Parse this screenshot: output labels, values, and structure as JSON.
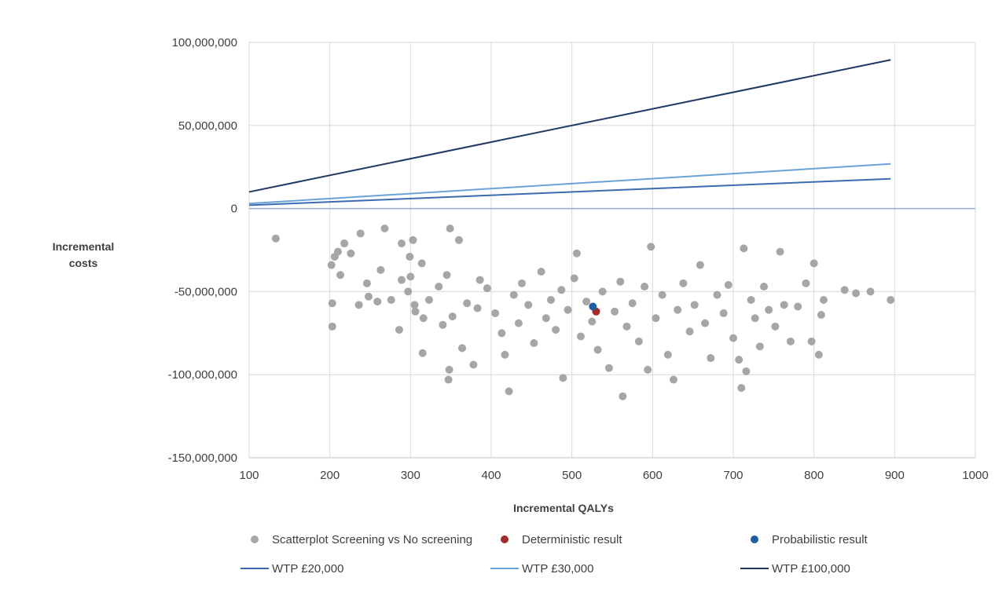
{
  "chart_data": {
    "type": "scatter",
    "title": "",
    "xlabel": "Incremental QALYs",
    "ylabel": [
      "Incremental",
      "costs"
    ],
    "xlim": [
      100,
      1000
    ],
    "ylim": [
      -150000000,
      100000000
    ],
    "x_ticks": [
      100,
      200,
      300,
      400,
      500,
      600,
      700,
      800,
      900,
      1000
    ],
    "y_ticks": [
      100000000,
      50000000,
      0,
      -50000000,
      -100000000,
      -150000000
    ],
    "x_tick_labels": [
      "100",
      "200",
      "300",
      "400",
      "500",
      "600",
      "700",
      "800",
      "900",
      "1000"
    ],
    "y_tick_labels": [
      "100,000,000",
      "50,000,000",
      "0",
      "-50,000,000",
      "-100,000,000",
      "-150,000,000"
    ],
    "grid": true,
    "legend_position": "bottom",
    "scatter": {
      "name": "Scatterplot Screening vs No screening",
      "color": "#a6a6a6",
      "points": [
        [
          133,
          -18000000
        ],
        [
          202,
          -34000000
        ],
        [
          203,
          -57000000
        ],
        [
          203,
          -71000000
        ],
        [
          206,
          -29000000
        ],
        [
          210,
          -26000000
        ],
        [
          213,
          -40000000
        ],
        [
          218,
          -21000000
        ],
        [
          226,
          -27000000
        ],
        [
          236,
          -58000000
        ],
        [
          238,
          -15000000
        ],
        [
          246,
          -45000000
        ],
        [
          248,
          -53000000
        ],
        [
          259,
          -56000000
        ],
        [
          263,
          -37000000
        ],
        [
          268,
          -12000000
        ],
        [
          276,
          -55000000
        ],
        [
          286,
          -73000000
        ],
        [
          289,
          -43000000
        ],
        [
          289,
          -21000000
        ],
        [
          297,
          -50000000
        ],
        [
          299,
          -29000000
        ],
        [
          300,
          -41000000
        ],
        [
          303,
          -19000000
        ],
        [
          305,
          -58000000
        ],
        [
          306,
          -62000000
        ],
        [
          314,
          -33000000
        ],
        [
          315,
          -87000000
        ],
        [
          316,
          -66000000
        ],
        [
          323,
          -55000000
        ],
        [
          335,
          -47000000
        ],
        [
          340,
          -70000000
        ],
        [
          345,
          -40000000
        ],
        [
          347,
          -103000000
        ],
        [
          348,
          -97000000
        ],
        [
          349,
          -12000000
        ],
        [
          352,
          -65000000
        ],
        [
          360,
          -19000000
        ],
        [
          364,
          -84000000
        ],
        [
          370,
          -57000000
        ],
        [
          378,
          -94000000
        ],
        [
          383,
          -60000000
        ],
        [
          386,
          -43000000
        ],
        [
          395,
          -48000000
        ],
        [
          405,
          -63000000
        ],
        [
          413,
          -75000000
        ],
        [
          417,
          -88000000
        ],
        [
          422,
          -110000000
        ],
        [
          428,
          -52000000
        ],
        [
          434,
          -69000000
        ],
        [
          438,
          -45000000
        ],
        [
          446,
          -58000000
        ],
        [
          453,
          -81000000
        ],
        [
          462,
          -38000000
        ],
        [
          468,
          -66000000
        ],
        [
          474,
          -55000000
        ],
        [
          480,
          -73000000
        ],
        [
          487,
          -49000000
        ],
        [
          489,
          -102000000
        ],
        [
          495,
          -61000000
        ],
        [
          503,
          -42000000
        ],
        [
          506,
          -27000000
        ],
        [
          511,
          -77000000
        ],
        [
          518,
          -56000000
        ],
        [
          525,
          -68000000
        ],
        [
          532,
          -85000000
        ],
        [
          538,
          -50000000
        ],
        [
          546,
          -96000000
        ],
        [
          553,
          -62000000
        ],
        [
          560,
          -44000000
        ],
        [
          563,
          -113000000
        ],
        [
          568,
          -71000000
        ],
        [
          575,
          -57000000
        ],
        [
          583,
          -80000000
        ],
        [
          590,
          -47000000
        ],
        [
          594,
          -97000000
        ],
        [
          598,
          -23000000
        ],
        [
          604,
          -66000000
        ],
        [
          612,
          -52000000
        ],
        [
          619,
          -88000000
        ],
        [
          626,
          -103000000
        ],
        [
          631,
          -61000000
        ],
        [
          638,
          -45000000
        ],
        [
          646,
          -74000000
        ],
        [
          652,
          -58000000
        ],
        [
          659,
          -34000000
        ],
        [
          665,
          -69000000
        ],
        [
          672,
          -90000000
        ],
        [
          680,
          -52000000
        ],
        [
          688,
          -63000000
        ],
        [
          694,
          -46000000
        ],
        [
          700,
          -78000000
        ],
        [
          707,
          -91000000
        ],
        [
          710,
          -108000000
        ],
        [
          713,
          -24000000
        ],
        [
          716,
          -98000000
        ],
        [
          722,
          -55000000
        ],
        [
          727,
          -66000000
        ],
        [
          733,
          -83000000
        ],
        [
          738,
          -47000000
        ],
        [
          744,
          -61000000
        ],
        [
          752,
          -71000000
        ],
        [
          758,
          -26000000
        ],
        [
          763,
          -58000000
        ],
        [
          771,
          -80000000
        ],
        [
          780,
          -59000000
        ],
        [
          790,
          -45000000
        ],
        [
          797,
          -80000000
        ],
        [
          800,
          -33000000
        ],
        [
          806,
          -88000000
        ],
        [
          809,
          -64000000
        ],
        [
          812,
          -55000000
        ],
        [
          838,
          -49000000
        ],
        [
          852,
          -51000000
        ],
        [
          870,
          -50000000
        ],
        [
          895,
          -55000000
        ]
      ]
    },
    "deterministic": {
      "name": "Deterministic result",
      "color": "#a52a2a",
      "x": 530,
      "y": -62000000
    },
    "probabilistic": {
      "name": "Probabilistic result",
      "color": "#1f5fa0",
      "x": 526,
      "y": -59000000
    },
    "lines": [
      {
        "name": "WTP £20,000",
        "wtp": 20000,
        "color": "#3d6bb3",
        "x": [
          100,
          895
        ]
      },
      {
        "name": "WTP £30,000",
        "wtp": 30000,
        "color": "#6aa2d8",
        "x": [
          100,
          895
        ]
      },
      {
        "name": "WTP £100,000",
        "wtp": 100000,
        "color": "#1f3864",
        "x": [
          100,
          895
        ]
      }
    ]
  }
}
